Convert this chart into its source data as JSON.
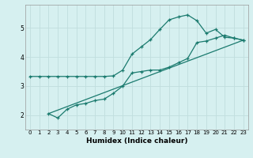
{
  "title": "",
  "xlabel": "Humidex (Indice chaleur)",
  "background_color": "#d6f0f0",
  "grid_color": "#c0dede",
  "line_color": "#1a7a6e",
  "xlim": [
    -0.5,
    23.5
  ],
  "ylim": [
    1.5,
    5.8
  ],
  "yticks": [
    2,
    3,
    4,
    5
  ],
  "xticks": [
    0,
    1,
    2,
    3,
    4,
    5,
    6,
    7,
    8,
    9,
    10,
    11,
    12,
    13,
    14,
    15,
    16,
    17,
    18,
    19,
    20,
    21,
    22,
    23
  ],
  "series1_x": [
    0,
    1,
    2,
    3,
    4,
    5,
    6,
    7,
    8,
    9,
    10,
    11,
    12,
    13,
    14,
    15,
    16,
    17,
    18,
    19,
    20,
    21,
    22,
    23
  ],
  "series1_y": [
    3.33,
    3.33,
    3.33,
    3.33,
    3.33,
    3.33,
    3.33,
    3.33,
    3.33,
    3.35,
    3.55,
    4.1,
    4.35,
    4.6,
    4.95,
    5.28,
    5.38,
    5.45,
    5.25,
    4.82,
    4.95,
    4.68,
    4.65,
    4.58
  ],
  "series2_x": [
    2,
    3,
    4,
    5,
    6,
    7,
    8,
    9,
    10,
    11,
    12,
    13,
    14,
    15,
    16,
    17,
    18,
    19,
    20,
    21,
    22,
    23
  ],
  "series2_y": [
    2.05,
    1.9,
    2.2,
    2.35,
    2.4,
    2.5,
    2.55,
    2.75,
    3.0,
    3.45,
    3.5,
    3.55,
    3.55,
    3.65,
    3.8,
    3.95,
    4.5,
    4.55,
    4.65,
    4.75,
    4.65,
    4.58
  ],
  "series3_x": [
    2,
    23
  ],
  "series3_y": [
    2.05,
    4.58
  ],
  "xlabel_fontsize": 6.5,
  "tick_fontsize": 5.0
}
